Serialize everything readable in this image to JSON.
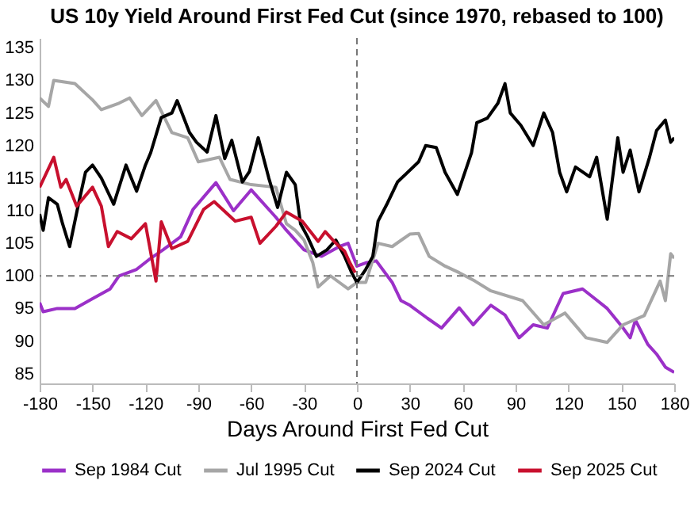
{
  "chart_data": {
    "type": "line",
    "title": "US 10y Yield Around First Fed Cut (since 1970, rebased to 100)",
    "xlabel": "Days Around First Fed Cut",
    "xlim": [
      -180,
      180
    ],
    "xticks": [
      -180,
      -150,
      -120,
      -90,
      -60,
      -30,
      0,
      30,
      60,
      90,
      120,
      150,
      180
    ],
    "ylim": [
      83.5,
      136.5
    ],
    "yticks": [
      85,
      90,
      95,
      100,
      105,
      110,
      115,
      120,
      125,
      130,
      135
    ],
    "legend": "bottom",
    "grid": false,
    "ref_lines": [
      {
        "axis": "x",
        "value": 0,
        "color": "#777777",
        "line_style": "dashed"
      },
      {
        "axis": "y",
        "value": 100,
        "color": "#777777",
        "line_style": "dashed"
      }
    ],
    "series": [
      {
        "name": "Sep 1984 Cut",
        "color": "#9b30c8",
        "x": [
          -180,
          -178,
          -170,
          -160,
          -150,
          -140,
          -135,
          -125,
          -118,
          -110,
          -100,
          -93,
          -80,
          -70,
          -60,
          -46,
          -40,
          -30,
          -20,
          -10,
          -5,
          0,
          5,
          11,
          20,
          25,
          30,
          40,
          48,
          58,
          66,
          76,
          84,
          92,
          100,
          108,
          117,
          128,
          135,
          142,
          151,
          155,
          158,
          165,
          170,
          175,
          180
        ],
        "values": [
          95.9,
          94.5,
          95,
          95,
          96.5,
          98,
          100,
          101,
          102.5,
          104,
          106,
          110.2,
          114.3,
          110,
          113.2,
          109,
          107,
          104,
          103,
          104.5,
          105,
          101.5,
          102,
          102.3,
          99,
          96.2,
          95.5,
          93.5,
          92,
          95.1,
          92.5,
          95.5,
          94,
          90.5,
          92.5,
          92,
          97.3,
          98,
          96.5,
          95,
          92,
          90.5,
          93.2,
          89.5,
          88,
          86,
          85.2
        ]
      },
      {
        "name": "Jul 1995 Cut",
        "color": "#a6a6a6",
        "x": [
          -180,
          -175,
          -172,
          -160,
          -150,
          -145,
          -135,
          -129,
          -122,
          -114,
          -105,
          -96,
          -90,
          -78,
          -72,
          -60,
          -46,
          -40,
          -35,
          -30,
          -25,
          -22,
          -15,
          -10,
          -5,
          0,
          5,
          12,
          20,
          30,
          35,
          41,
          50,
          58,
          67,
          76,
          94,
          106,
          118,
          130,
          142,
          151,
          163,
          172,
          175,
          178,
          180
        ],
        "values": [
          127.3,
          126,
          130,
          129.5,
          127,
          125.5,
          126.5,
          127.3,
          124.6,
          126.9,
          122,
          121.2,
          117.5,
          118.2,
          114.8,
          114,
          113.6,
          108,
          107,
          105.5,
          102,
          98.3,
          100,
          99,
          98,
          99,
          99,
          105,
          104.5,
          106.4,
          106.5,
          103,
          101.5,
          100.5,
          99.2,
          97.7,
          96.2,
          92.5,
          94.3,
          90.5,
          89.8,
          92.5,
          93.9,
          99.2,
          96.2,
          103.4,
          102.7
        ]
      },
      {
        "name": "Sep 2024 Cut",
        "color": "#000000",
        "x": [
          -180,
          -178,
          -175,
          -170,
          -167,
          -163,
          -158,
          -154,
          -150,
          -145,
          -138,
          -131,
          -125,
          -120,
          -117,
          -111,
          -105,
          -102,
          -95,
          -91,
          -85,
          -80,
          -75,
          -71,
          -65,
          -61,
          -56,
          -50,
          -45,
          -40,
          -35,
          -32,
          -28,
          -23,
          -17,
          -12,
          -7,
          -3,
          0,
          5,
          9,
          12,
          17,
          23,
          35,
          39,
          45,
          50,
          57,
          65,
          68,
          74,
          80,
          84,
          87,
          93,
          100,
          106,
          111,
          115,
          119,
          124,
          132,
          136,
          142,
          148,
          151,
          155,
          160,
          166,
          170,
          175,
          178,
          180
        ],
        "values": [
          109.5,
          107,
          112,
          111,
          108,
          104.5,
          111,
          115.9,
          117,
          115,
          111,
          117,
          113,
          117,
          118.9,
          124.3,
          125,
          126.9,
          122,
          120.5,
          119,
          124.6,
          118,
          120.8,
          114.4,
          116,
          121.2,
          115,
          110.5,
          115.9,
          114,
          108,
          106,
          103,
          104,
          105.5,
          103,
          100.5,
          99,
          101,
          103,
          108.4,
          111,
          114.4,
          117.5,
          120,
          119.7,
          115.9,
          112.5,
          118.9,
          123.5,
          124.2,
          126.5,
          129.5,
          125,
          123.1,
          120,
          125,
          122,
          115.9,
          112.9,
          116.7,
          115.2,
          118.2,
          108.7,
          121.2,
          115.9,
          119.3,
          112.9,
          118.2,
          122.3,
          123.9,
          120.5,
          121.2
        ]
      },
      {
        "name": "Sep 2025 Cut",
        "color": "#c8102e",
        "x": [
          -180,
          -172,
          -168,
          -165,
          -159,
          -150,
          -145,
          -141,
          -136,
          -128,
          -120,
          -114,
          -111,
          -105,
          -96,
          -87,
          -81,
          -69,
          -60,
          -55,
          -46,
          -40,
          -31,
          -22,
          -18,
          -13,
          -10,
          -7,
          -4,
          -1
        ],
        "values": [
          113.6,
          118.2,
          113.6,
          114.8,
          110.7,
          113.6,
          110.7,
          104.5,
          106.8,
          105.7,
          108,
          99.2,
          108.3,
          104.2,
          105.3,
          110.2,
          111.4,
          108.4,
          109,
          105,
          107.6,
          109.8,
          108.4,
          105.3,
          106.8,
          105.3,
          104.5,
          103.8,
          102,
          100.5
        ]
      }
    ]
  }
}
